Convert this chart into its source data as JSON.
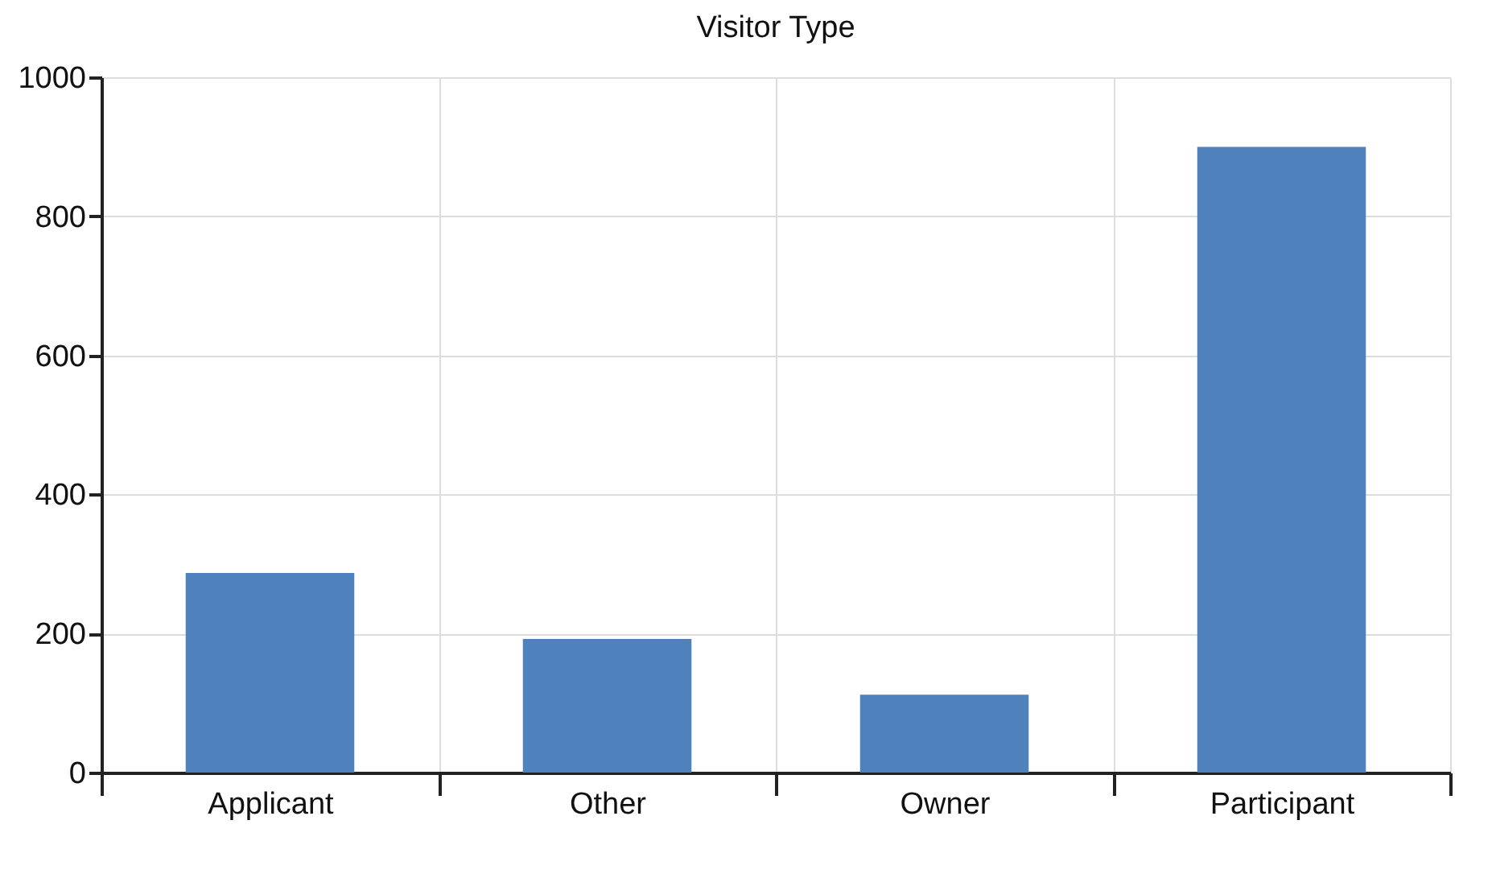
{
  "chart_data": {
    "type": "bar",
    "title": "Visitor Type",
    "categories": [
      "Applicant",
      "Other",
      "Owner",
      "Participant"
    ],
    "values": [
      287,
      192,
      112,
      900
    ],
    "color": "#4f81bd",
    "ylim": [
      0,
      1000
    ],
    "yticks": [
      0,
      200,
      400,
      600,
      800,
      1000
    ],
    "grid": true
  }
}
